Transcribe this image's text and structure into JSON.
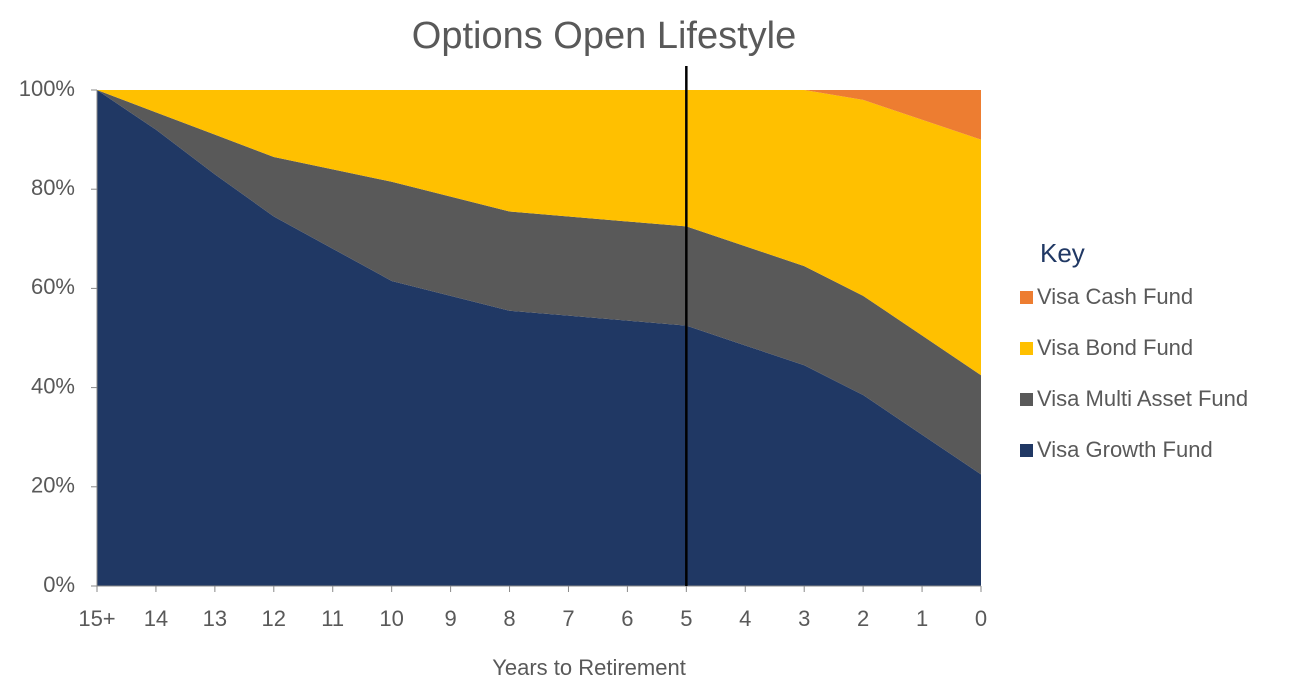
{
  "chart_data": {
    "type": "stacked_area",
    "title": "Options Open Lifestyle",
    "x_label": "Years to Retirement",
    "legend_title": "Key",
    "categories": [
      "15+",
      "14",
      "13",
      "12",
      "11",
      "10",
      "9",
      "8",
      "7",
      "6",
      "5",
      "4",
      "3",
      "2",
      "1",
      "0"
    ],
    "series": [
      {
        "name": "Visa Growth Fund",
        "color": "#203864",
        "values": [
          100,
          92,
          83,
          74.5,
          68,
          61.5,
          58.5,
          55.5,
          54.5,
          53.5,
          52.5,
          48.5,
          44.5,
          38.5,
          30.5,
          22.5
        ]
      },
      {
        "name": "Visa Multi Asset Fund",
        "color": "#595959",
        "values": [
          0,
          3.5,
          8,
          12,
          16,
          20,
          20,
          20,
          20,
          20,
          20,
          20,
          20,
          20,
          20,
          20
        ]
      },
      {
        "name": "Visa Bond Fund",
        "color": "#ffc000",
        "values": [
          0,
          4.5,
          9,
          13.5,
          16,
          18.5,
          21.5,
          24.5,
          25.5,
          26.5,
          27.5,
          31.5,
          35.5,
          39.5,
          43.5,
          47.5
        ]
      },
      {
        "name": "Visa Cash Fund",
        "color": "#ed7d31",
        "values": [
          0,
          0,
          0,
          0,
          0,
          0,
          0,
          0,
          0,
          0,
          0,
          0,
          0,
          2,
          6,
          10
        ]
      }
    ],
    "vline_at": "5",
    "ylim": [
      0,
      100
    ],
    "yticks": [
      {
        "value": 0,
        "label": "0%"
      },
      {
        "value": 20,
        "label": "20%"
      },
      {
        "value": 40,
        "label": "40%"
      },
      {
        "value": 60,
        "label": "60%"
      },
      {
        "value": 80,
        "label": "80%"
      },
      {
        "value": 100,
        "label": "100%"
      }
    ]
  }
}
